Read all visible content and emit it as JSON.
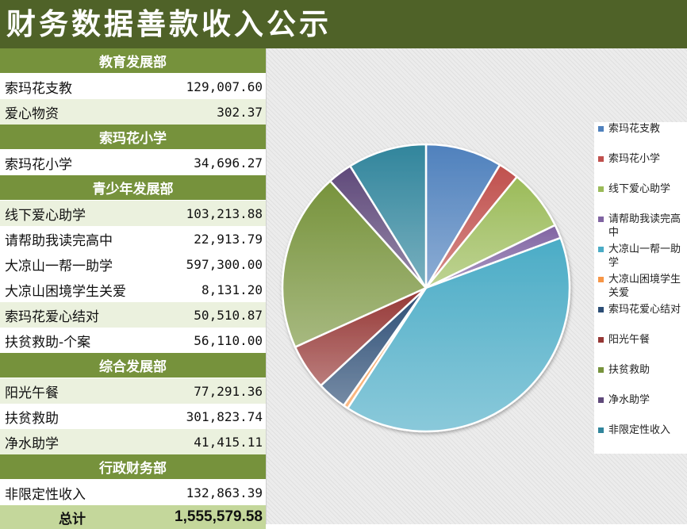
{
  "title": "财务数据善款收入公示",
  "sections": [
    {
      "name": "教育发展部",
      "items": [
        {
          "label": "索玛花支教",
          "value": "129,007.60"
        },
        {
          "label": "爱心物资",
          "value": "302.37"
        }
      ]
    },
    {
      "name": "索玛花小学",
      "items": [
        {
          "label": "索玛花小学",
          "value": "34,696.27"
        }
      ]
    },
    {
      "name": "青少年发展部",
      "items": [
        {
          "label": "线下爱心助学",
          "value": "103,213.88"
        },
        {
          "label": "请帮助我读完高中",
          "value": "22,913.79"
        },
        {
          "label": "大凉山一帮一助学",
          "value": "597,300.00"
        },
        {
          "label": "大凉山困境学生关爱",
          "value": "8,131.20"
        },
        {
          "label": "索玛花爱心结对",
          "value": "50,510.87"
        },
        {
          "label": "扶贫救助-个案",
          "value": "56,110.00"
        }
      ]
    },
    {
      "name": "综合发展部",
      "items": [
        {
          "label": "阳光午餐",
          "value": "77,291.36"
        },
        {
          "label": "扶贫救助",
          "value": "301,823.74"
        },
        {
          "label": "净水助学",
          "value": "41,415.11"
        }
      ]
    },
    {
      "name": "行政财务部",
      "items": [
        {
          "label": "非限定性收入",
          "value": "132,863.39"
        }
      ]
    }
  ],
  "total": {
    "label": "总计",
    "value": "1,555,579.58"
  },
  "chart_data": {
    "type": "pie",
    "categories": [
      "索玛花支教",
      "索玛花小学",
      "线下爱心助学",
      "请帮助我读完高中",
      "大凉山一帮一助学",
      "大凉山困境学生关爱",
      "索玛花爱心结对",
      "阳光午餐",
      "扶贫救助",
      "净水助学",
      "非限定性收入"
    ],
    "values": [
      129007.6,
      34696.27,
      103213.88,
      22913.79,
      597300.0,
      8131.2,
      50510.87,
      77291.36,
      301823.74,
      41415.11,
      132863.39
    ],
    "colors": [
      "#4f81bd",
      "#c0504d",
      "#9bbb59",
      "#8064a2",
      "#4bacc6",
      "#f79646",
      "#2c4d75",
      "#953735",
      "#77933c",
      "#5f497a",
      "#31859c"
    ],
    "legend": "right"
  }
}
